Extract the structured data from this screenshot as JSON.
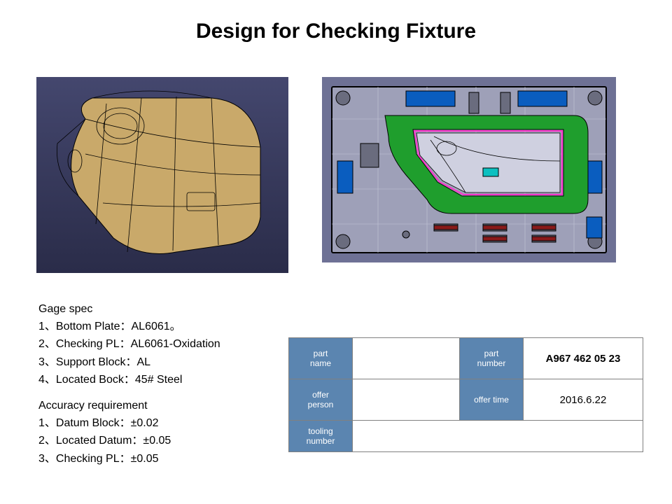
{
  "title": "Design for Checking Fixture",
  "gage_spec": {
    "heading": "Gage spec",
    "items": [
      "1、Bottom Plate：AL6061。",
      "2、Checking PL：AL6061-Oxidation",
      "3、Support Block：AL",
      "4、Located Bock：45# Steel"
    ]
  },
  "accuracy": {
    "heading": "Accuracy requirement",
    "items": [
      "1、Datum Block：±0.02",
      "2、Located Datum：±0.05",
      "3、Checking PL：±0.05"
    ]
  },
  "info_table": {
    "rows": [
      {
        "l1": "part\nname",
        "v1": "",
        "l2": "part\nnumber",
        "v2": "A967 462 05 23",
        "v2_bold": true
      },
      {
        "l1": "offer\nperson",
        "v1": "",
        "l2": "offer time",
        "v2": "2016.6.22",
        "v2_bold": false
      }
    ],
    "row3_label": "tooling\nnumber",
    "row3_value": ""
  },
  "style": {
    "title_fontsize": 30,
    "title_weight": "bold",
    "body_fontsize": 16,
    "table_label_bg": "#5b85b0",
    "table_label_color": "#ffffff",
    "table_border": "#808080",
    "page_bg": "#ffffff",
    "cad_bg_left": "#3a3d63",
    "cad_bg_right": "#6e7195",
    "part_fill": "#c9a96a",
    "fixture_plate": "#9ea0b8",
    "fixture_green": "#1f9e2d",
    "fixture_blue": "#0a5dbf",
    "fixture_pink": "#ff33cc"
  },
  "left_image": {
    "type": "cad-render",
    "description": "3D CAD wireframe render of a tan plastic housing part on a dark-blue gradient background"
  },
  "right_image": {
    "type": "cad-top-view",
    "description": "Top view of checking-fixture base plate with green contour blocks, blue/black components, pink highlight outline, on grey plate"
  }
}
